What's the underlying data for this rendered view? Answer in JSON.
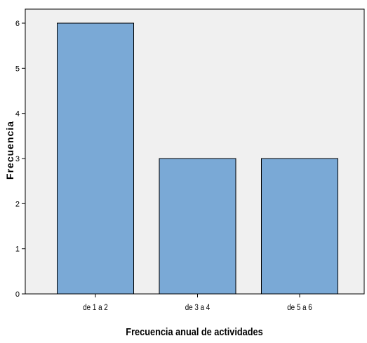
{
  "chart_data": {
    "type": "bar",
    "title": "",
    "xlabel": "Frecuencia anual de actividades",
    "ylabel": "Frecuencia",
    "categories": [
      "de 1 a 2",
      "de 3 a 4",
      "de 5 a 6"
    ],
    "values": [
      6,
      3,
      3
    ],
    "ylim": [
      0,
      6
    ],
    "yticks": [
      "0",
      "1",
      "2",
      "3",
      "4",
      "5",
      "6"
    ],
    "grid": false,
    "legend": "none",
    "colors": {
      "bar_fill": "#7aa9d6",
      "bar_stroke": "#000000",
      "plot_background": "#f0f0f0",
      "axis": "#000000"
    }
  }
}
